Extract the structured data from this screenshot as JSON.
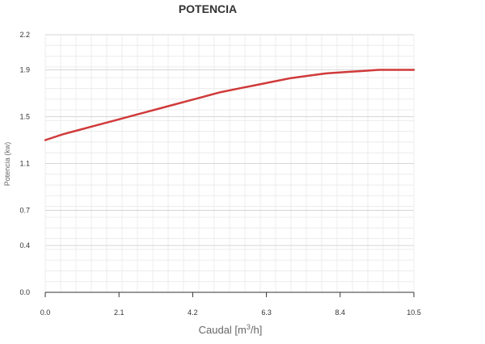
{
  "chart_data": {
    "type": "line",
    "title": "POTENCIA",
    "ylabel": "Potencia (kw)",
    "xlabel_prefix": "Caudal [m",
    "xlabel_sup": "3",
    "xlabel_suffix": "/h]",
    "xlim": [
      0,
      10.5
    ],
    "ylim": [
      0,
      2.2
    ],
    "x_ticks": [
      "0.0",
      "2.1",
      "4.2",
      "6.3",
      "8.4",
      "10.5"
    ],
    "y_ticks": [
      "0.0",
      "0.4",
      "0.7",
      "1.1",
      "1.5",
      "1.9",
      "2.2"
    ],
    "grid": true,
    "series": [
      {
        "color": "#d03a3a",
        "x": [
          0,
          0.5,
          1.0,
          1.5,
          2.0,
          2.5,
          3.0,
          3.5,
          4.0,
          4.5,
          5.0,
          5.5,
          6.0,
          6.5,
          7.0,
          7.5,
          8.0,
          8.5,
          9.0,
          9.5,
          10.0,
          10.5
        ],
        "y": [
          1.3,
          1.35,
          1.39,
          1.43,
          1.47,
          1.51,
          1.55,
          1.59,
          1.63,
          1.67,
          1.71,
          1.74,
          1.77,
          1.8,
          1.83,
          1.85,
          1.87,
          1.88,
          1.89,
          1.9,
          1.9,
          1.9
        ]
      }
    ]
  }
}
